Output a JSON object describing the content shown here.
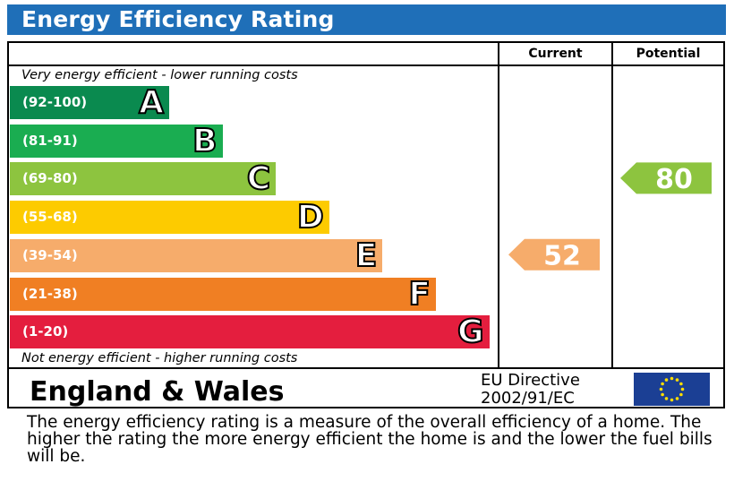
{
  "title": "Energy Efficiency Rating",
  "columns": {
    "current": "Current",
    "potential": "Potential"
  },
  "top_note": "Very energy efficient - lower running costs",
  "bottom_note": "Not energy efficient - higher running costs",
  "chart_data": {
    "type": "bar",
    "bands": [
      {
        "letter": "A",
        "range": "(92-100)",
        "min": 92,
        "max": 100,
        "color": "#0a8a4f"
      },
      {
        "letter": "B",
        "range": "(81-91)",
        "min": 81,
        "max": 91,
        "color": "#1aad51"
      },
      {
        "letter": "C",
        "range": "(69-80)",
        "min": 69,
        "max": 80,
        "color": "#8dc43f"
      },
      {
        "letter": "D",
        "range": "(55-68)",
        "min": 55,
        "max": 68,
        "color": "#fdcb00"
      },
      {
        "letter": "E",
        "range": "(39-54)",
        "min": 39,
        "max": 54,
        "color": "#f6ac6b"
      },
      {
        "letter": "F",
        "range": "(21-38)",
        "min": 21,
        "max": 38,
        "color": "#f07f23"
      },
      {
        "letter": "G",
        "range": "(1-20)",
        "min": 1,
        "max": 20,
        "color": "#e41e3e"
      }
    ],
    "current": {
      "value": 52,
      "label": "52",
      "band": "E"
    },
    "potential": {
      "value": 80,
      "label": "80",
      "band": "C"
    }
  },
  "footer": {
    "country": "England & Wales",
    "directive_line1": "EU Directive",
    "directive_line2": "2002/91/EC",
    "flag_blue": "#1b3f94",
    "flag_star": "#ffdd00"
  },
  "description": "The energy efficiency rating is a measure of the overall efficiency of a home.  The higher the rating the more energy efficient the home is and the lower the fuel bills will be."
}
